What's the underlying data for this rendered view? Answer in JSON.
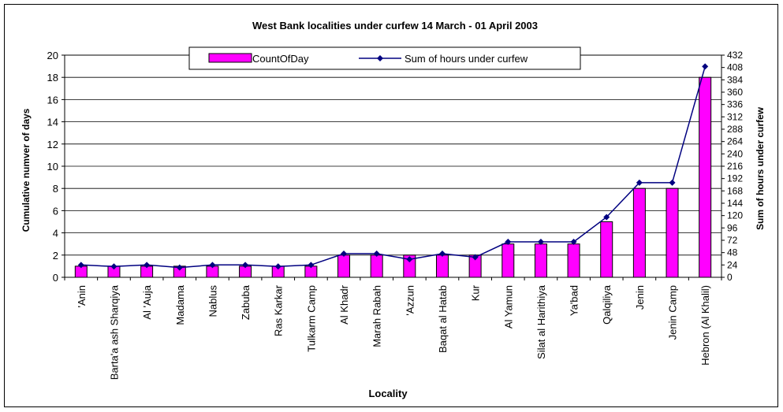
{
  "chart_data": {
    "type": "bar",
    "title": "West Bank localities under curfew 14 March - 01 April 2003",
    "xlabel": "Locality",
    "ylabel": "Cumulative numver of days",
    "y2label": "Sum of hours under curfew",
    "ylim": [
      0,
      20
    ],
    "y2lim": [
      0,
      432
    ],
    "yticks": [
      "0",
      "2",
      "4",
      "6",
      "8",
      "10",
      "12",
      "14",
      "16",
      "18",
      "20"
    ],
    "y2ticks": [
      "0",
      "24",
      "48",
      "72",
      "96",
      "120",
      "144",
      "168",
      "192",
      "216",
      "240",
      "264",
      "288",
      "312",
      "336",
      "360",
      "384",
      "408",
      "432"
    ],
    "grid": true,
    "legend_position": "top-center",
    "categories": [
      "'Anin",
      "Barta'a ash Sharqiya",
      "Al 'Auja",
      "Madama",
      "Nablus",
      "Zabuba",
      "Ras Karkar",
      "Tulkarm Camp",
      "Al Khadr",
      "Marah Rabah",
      "'Azzun",
      "Baqat al Hatab",
      "Kur",
      "Al Yamun",
      "Silat al Harithiya",
      "Ya'bad",
      "Qalqiliya",
      "Jenin",
      "Jenin Camp",
      "Hebron (Al Khalil)"
    ],
    "series": [
      {
        "name": "CountOfDay",
        "type": "bar",
        "axis": "left",
        "color": "#ff00ff",
        "values": [
          1,
          1,
          1,
          1,
          1,
          1,
          1,
          1,
          2,
          2,
          2,
          2,
          2,
          3,
          3,
          3,
          5,
          8,
          8,
          18
        ]
      },
      {
        "name": "Sum of hours under curfew",
        "type": "line",
        "axis": "right",
        "color": "#000080",
        "values": [
          24,
          21,
          24,
          19,
          24,
          24,
          21,
          24,
          46,
          46,
          35,
          46,
          39,
          69,
          69,
          69,
          117,
          184,
          184,
          410
        ]
      }
    ]
  }
}
